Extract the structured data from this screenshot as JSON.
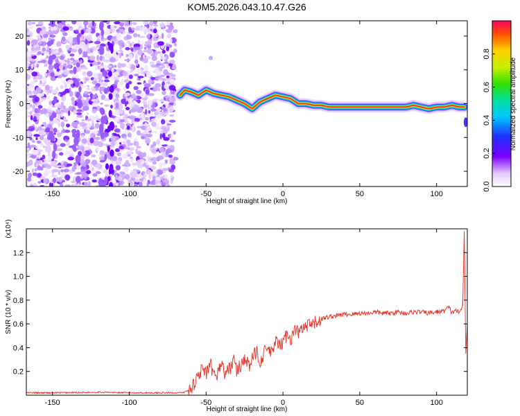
{
  "title": "KOM5.2026.043.10.47.G26",
  "chart_data": [
    {
      "type": "heatmap",
      "name": "spectrogram",
      "xlabel": "Height of straight line (km)",
      "ylabel": "Frequency (Hz)",
      "xlim": [
        -167,
        120
      ],
      "ylim": [
        -24.5,
        24.5
      ],
      "xticks": [
        -150,
        -100,
        -50,
        0,
        50,
        100
      ],
      "yticks": [
        -20,
        -10,
        0,
        10,
        20
      ],
      "colorbar": {
        "label": "Normalized spectral amplitude",
        "range": [
          0,
          1
        ],
        "ticks": [
          0.0,
          0.2,
          0.4,
          0.6,
          0.8
        ]
      },
      "noise_region_km": [
        -167,
        -70
      ],
      "ridge": {
        "x": [
          -67,
          -64,
          -60,
          -55,
          -50,
          -45,
          -40,
          -35,
          -30,
          -25,
          -20,
          -15,
          -10,
          -5,
          0,
          5,
          10,
          15,
          20,
          25,
          30,
          40,
          50,
          60,
          70,
          80,
          85,
          90,
          95,
          100,
          105,
          110,
          115,
          118
        ],
        "y": [
          2.5,
          4,
          3.5,
          2.5,
          4,
          3,
          2.5,
          2,
          1,
          0,
          -1.5,
          0.5,
          1.5,
          2.5,
          2,
          1.5,
          0,
          0,
          -0.5,
          -0.5,
          -1,
          -1,
          -1,
          -1,
          -1,
          -1,
          -0.5,
          -1,
          -1.5,
          -1,
          -1,
          -0.5,
          -1,
          -1
        ]
      }
    },
    {
      "type": "line",
      "name": "snr",
      "xlabel": "Height of straight line (km)",
      "ylabel": "SNR (10 * v/v)",
      "y_multiplier": "(x10⁴)",
      "xlim": [
        -167,
        120
      ],
      "ylim": [
        0,
        1.4
      ],
      "xticks": [
        -150,
        -100,
        -50,
        0,
        50,
        100
      ],
      "yticks": [
        0.2,
        0.4,
        0.6,
        0.8,
        1.0,
        1.2
      ],
      "color": "#e83a2e",
      "series": [
        {
          "name": "SNR",
          "x": [
            -167,
            -150,
            -120,
            -100,
            -80,
            -70,
            -65,
            -60,
            -57,
            -55,
            -52,
            -50,
            -47,
            -45,
            -42,
            -40,
            -38,
            -35,
            -32,
            -30,
            -27,
            -25,
            -22,
            -20,
            -17,
            -15,
            -12,
            -10,
            -7,
            -5,
            -2,
            0,
            3,
            5,
            8,
            10,
            15,
            20,
            25,
            30,
            35,
            40,
            45,
            50,
            55,
            60,
            65,
            70,
            75,
            80,
            85,
            90,
            95,
            100,
            105,
            108,
            110,
            112,
            115,
            117,
            118,
            119,
            120
          ],
          "y": [
            0.02,
            0.02,
            0.025,
            0.02,
            0.02,
            0.02,
            0.02,
            0.05,
            0.12,
            0.18,
            0.22,
            0.17,
            0.25,
            0.15,
            0.2,
            0.28,
            0.18,
            0.22,
            0.3,
            0.2,
            0.26,
            0.32,
            0.24,
            0.3,
            0.38,
            0.28,
            0.36,
            0.4,
            0.34,
            0.46,
            0.4,
            0.45,
            0.52,
            0.47,
            0.55,
            0.53,
            0.57,
            0.6,
            0.64,
            0.66,
            0.67,
            0.68,
            0.68,
            0.69,
            0.69,
            0.7,
            0.69,
            0.69,
            0.7,
            0.69,
            0.7,
            0.7,
            0.69,
            0.7,
            0.71,
            0.74,
            0.69,
            0.72,
            0.69,
            0.75,
            1.38,
            0.35,
            0.6
          ]
        }
      ]
    }
  ]
}
